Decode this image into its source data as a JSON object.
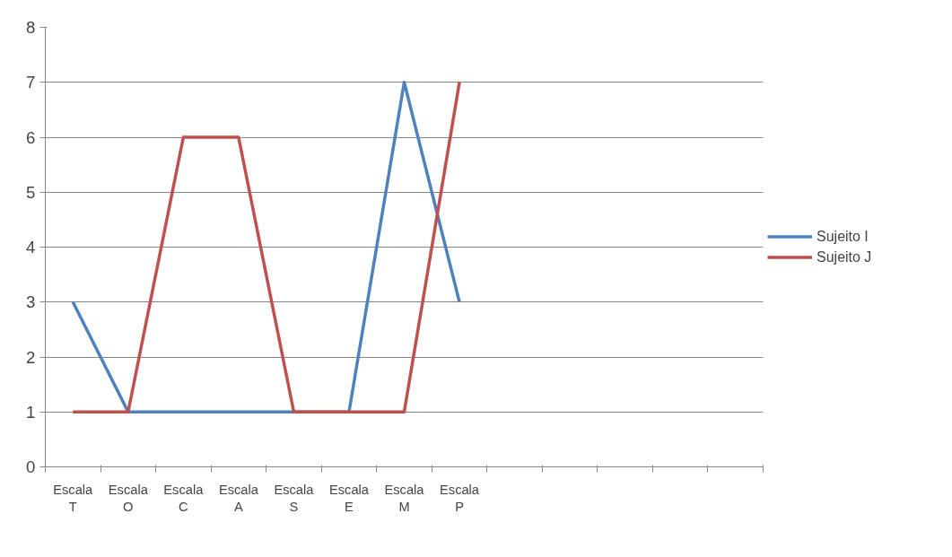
{
  "chart_data": {
    "type": "line",
    "categories": [
      "Escala T",
      "Escala O",
      "Escala C",
      "Escala A",
      "Escala S",
      "Escala E",
      "Escala M",
      "Escala P",
      null,
      null,
      null,
      null,
      null
    ],
    "series": [
      {
        "name": "Sujeito I",
        "color": "#4f81bd",
        "values": [
          3,
          1,
          1,
          1,
          1,
          1,
          7,
          3,
          null,
          null,
          null,
          null,
          null
        ]
      },
      {
        "name": "Sujeito J",
        "color": "#c0504d",
        "values": [
          1,
          1,
          6,
          6,
          1,
          1,
          1,
          7,
          null,
          null,
          null,
          null,
          null
        ]
      }
    ],
    "ylim": [
      0,
      8
    ],
    "yticks": [
      0,
      1,
      2,
      3,
      4,
      5,
      6,
      7,
      8
    ],
    "grid": "y",
    "legend": "right",
    "marker": "none"
  }
}
